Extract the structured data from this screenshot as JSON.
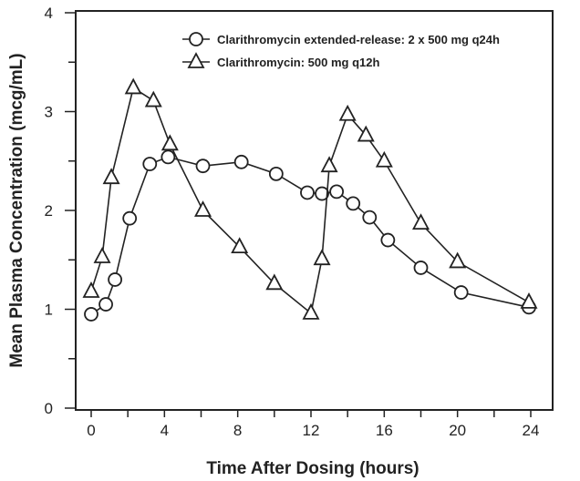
{
  "chart_data": {
    "type": "line",
    "title": "",
    "xlabel": "Time After Dosing (hours)",
    "ylabel": "Mean Plasma Concentration (mcg/mL)",
    "xlim": [
      0,
      24
    ],
    "ylim": [
      0,
      4
    ],
    "xticks": [
      "0",
      "4",
      "8",
      "12",
      "16",
      "20",
      "24"
    ],
    "yticks": [
      "0",
      "1",
      "2",
      "3",
      "4"
    ],
    "grid": false,
    "legend": "top-right",
    "series": [
      {
        "name": "Clarithromycin extended-release: 2 x 500 mg q24h",
        "marker": "circle",
        "x": [
          0,
          0.8,
          1.3,
          2.1,
          3.2,
          4.2,
          6.1,
          8.2,
          10.1,
          11.8,
          12.6,
          13.4,
          14.3,
          15.2,
          16.2,
          18,
          20.2,
          23.9
        ],
        "y": [
          0.95,
          1.05,
          1.3,
          1.92,
          2.47,
          2.54,
          2.45,
          2.49,
          2.37,
          2.18,
          2.17,
          2.19,
          2.07,
          1.93,
          1.7,
          1.42,
          1.17,
          1.02
        ]
      },
      {
        "name": "Clarithromycin: 500 mg q12h",
        "marker": "triangle",
        "x": [
          0,
          0.6,
          1.1,
          2.3,
          3.4,
          4.3,
          6.1,
          8.1,
          10.0,
          12.0,
          12.6,
          13.0,
          14.0,
          15.0,
          16.0,
          18.0,
          20.0,
          23.9
        ],
        "y": [
          1.18,
          1.53,
          2.33,
          3.24,
          3.11,
          2.67,
          2.0,
          1.63,
          1.26,
          0.96,
          1.51,
          2.45,
          2.97,
          2.76,
          2.5,
          1.87,
          1.48,
          1.07
        ]
      }
    ]
  }
}
